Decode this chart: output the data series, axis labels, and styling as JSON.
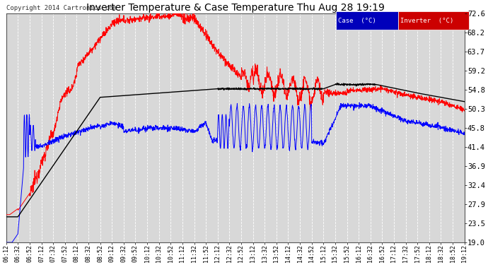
{
  "title": "Inverter Temperature & Case Temperature Thu Aug 28 19:19",
  "copyright": "Copyright 2014 Cartronics.com",
  "ylabel_right": [
    "19.0",
    "23.5",
    "27.9",
    "32.4",
    "36.9",
    "41.4",
    "45.8",
    "50.3",
    "54.8",
    "59.2",
    "63.7",
    "68.2",
    "72.6"
  ],
  "ymin": 19.0,
  "ymax": 72.6,
  "bg_color": "#ffffff",
  "plot_bg_color": "#d8d8d8",
  "grid_color": "#ffffff",
  "legend_case_bg": "#0000bb",
  "legend_inv_bg": "#cc0000",
  "legend_text_color": "#ffffff",
  "line_red": "#ff0000",
  "line_blue": "#0000ff",
  "line_black": "#000000",
  "time_labels": [
    "06:12",
    "06:32",
    "06:52",
    "07:12",
    "07:32",
    "07:52",
    "08:12",
    "08:32",
    "08:52",
    "09:12",
    "09:32",
    "09:52",
    "10:12",
    "10:32",
    "10:52",
    "11:12",
    "11:32",
    "11:52",
    "12:12",
    "12:32",
    "12:52",
    "13:12",
    "13:32",
    "13:52",
    "14:12",
    "14:32",
    "14:52",
    "15:12",
    "15:32",
    "15:52",
    "16:12",
    "16:32",
    "16:52",
    "17:12",
    "17:32",
    "17:52",
    "18:12",
    "18:32",
    "18:52",
    "19:12"
  ]
}
